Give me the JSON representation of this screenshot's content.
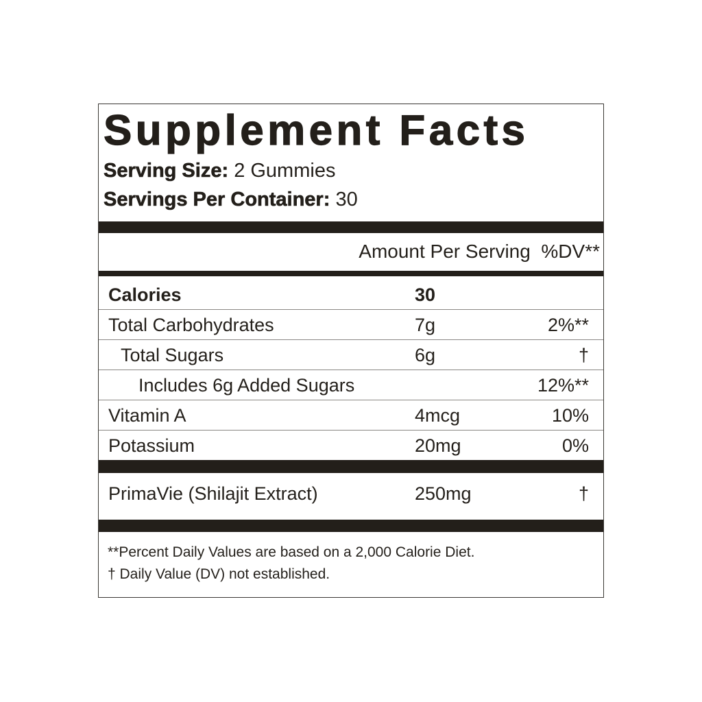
{
  "title": "Supplement Facts",
  "serving_size": {
    "label": "Serving Size:",
    "value": "2 Gummies"
  },
  "servings_per_container": {
    "label": "Servings Per Container:",
    "value": "30"
  },
  "header": {
    "amount": "Amount Per Serving",
    "dv": "%DV**"
  },
  "rows": [
    {
      "label": "Calories",
      "amount": "30",
      "dv": ""
    },
    {
      "label": "Total Carbohydrates",
      "amount": "7g",
      "dv": "2%**"
    },
    {
      "label": "Total Sugars",
      "amount": "6g",
      "dv": "†"
    },
    {
      "label": "Includes 6g Added Sugars",
      "amount": "",
      "dv": "12%**"
    },
    {
      "label": "Vitamin A",
      "amount": "4mcg",
      "dv": "10%"
    },
    {
      "label": "Potassium",
      "amount": "20mg",
      "dv": "0%"
    }
  ],
  "extract": {
    "label": "PrimaVie (Shilajit Extract)",
    "amount": "250mg",
    "dv": "†"
  },
  "footnotes": [
    "**Percent Daily Values are based on a 2,000 Calorie Diet.",
    "† Daily Value (DV) not established."
  ]
}
